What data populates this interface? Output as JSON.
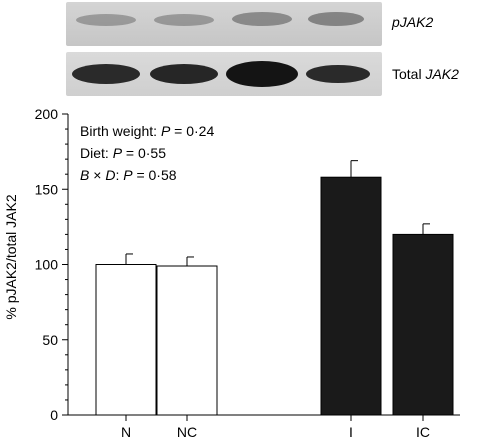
{
  "blot": {
    "top_label": "pJAK2",
    "bottom_label_prefix": "Total ",
    "bottom_label_italic": "JAK2"
  },
  "annotations": [
    {
      "lead": "Birth weight: ",
      "p_symbol": "P",
      "value": " = 0·24"
    },
    {
      "lead": "Diet: ",
      "p_symbol": "P",
      "value": " = 0·55"
    },
    {
      "lead": "B × D: ",
      "p_symbol": "P",
      "value": " = 0·58"
    }
  ],
  "chart_data": {
    "type": "bar",
    "ylabel": "% pJAK2/total JAK2",
    "ylim": [
      0,
      200
    ],
    "yticks": [
      0,
      50,
      100,
      150,
      200
    ],
    "categories": [
      "N",
      "NC",
      "I",
      "IC"
    ],
    "values": [
      100,
      99,
      158,
      120
    ],
    "errors": [
      7,
      6,
      11,
      7
    ],
    "fills": [
      "#ffffff",
      "#ffffff",
      "#1a1a1a",
      "#1a1a1a"
    ],
    "grid": false
  }
}
